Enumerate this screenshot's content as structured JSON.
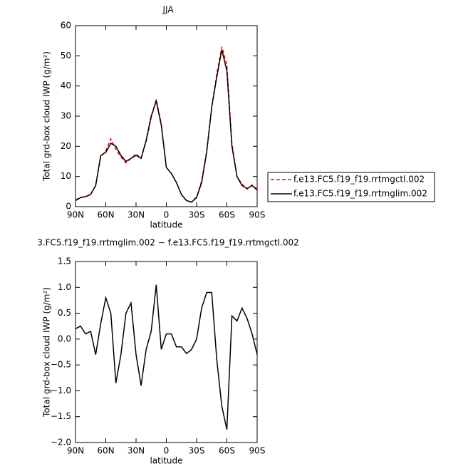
{
  "chart_data": [
    {
      "type": "line",
      "title": "JJA",
      "x_label": "latitude",
      "y_label": "Total grd-box cloud IWP (g/m²)",
      "x": [
        90,
        85,
        80,
        75,
        70,
        65,
        60,
        55,
        50,
        45,
        40,
        35,
        30,
        25,
        20,
        15,
        10,
        5,
        0,
        -5,
        -10,
        -15,
        -20,
        -25,
        -30,
        -35,
        -40,
        -45,
        -50,
        -55,
        -60,
        -65,
        -70,
        -75,
        -80,
        -85,
        -90
      ],
      "xlim": [
        90,
        -90
      ],
      "xticks": [
        {
          "value": 90,
          "label": "90N"
        },
        {
          "value": 60,
          "label": "60N"
        },
        {
          "value": 30,
          "label": "30N"
        },
        0,
        {
          "value": -30,
          "label": "30S"
        },
        {
          "value": -60,
          "label": "60S"
        },
        {
          "value": -90,
          "label": "90S"
        }
      ],
      "ylim": [
        0,
        60
      ],
      "yticks": [
        0,
        10,
        20,
        30,
        40,
        50,
        60
      ],
      "legend": "right",
      "series": [
        {
          "name": "f.e13.FC5.f19_f19.rrtmgctl.002",
          "color": "#ff0000",
          "dash": true,
          "values": [
            2.2,
            3.1,
            3.3,
            4.2,
            7,
            16.5,
            18.5,
            22.5,
            19,
            16.5,
            14.5,
            16,
            17.5,
            16,
            21.5,
            29.5,
            35.5,
            27.5,
            13,
            11,
            8,
            4,
            2,
            1.6,
            3.2,
            8.5,
            18.5,
            33,
            44,
            53,
            47,
            21,
            10,
            7.5,
            5.8,
            7.2,
            5.8
          ]
        },
        {
          "name": "f.e13.FC5.f19_f19.rrtmglim.002",
          "color": "#000000",
          "dash": false,
          "values": [
            2,
            3,
            3.3,
            4,
            7,
            17,
            18,
            21,
            20,
            17,
            15,
            16,
            17,
            16,
            22,
            30,
            35,
            27,
            13,
            11,
            8,
            4,
            2,
            1.5,
            3,
            8,
            18,
            33,
            43,
            52,
            45,
            20,
            10,
            7,
            6,
            7,
            5.5
          ]
        }
      ]
    },
    {
      "type": "line",
      "title": "3.FC5.f19_f19.rrtmglim.002 − f.e13.FC5.f19_f19.rrtmgctl.002",
      "x_label": "latitude",
      "y_label": "Total grd-box cloud IWP (g/m²)",
      "x": [
        90,
        85,
        80,
        75,
        70,
        65,
        60,
        55,
        50,
        45,
        40,
        35,
        30,
        25,
        20,
        15,
        10,
        5,
        0,
        -5,
        -10,
        -15,
        -20,
        -25,
        -30,
        -35,
        -40,
        -45,
        -50,
        -55,
        -60,
        -65,
        -70,
        -75,
        -80,
        -85,
        -90
      ],
      "xlim": [
        90,
        -90
      ],
      "xticks": [
        {
          "value": 90,
          "label": "90N"
        },
        {
          "value": 60,
          "label": "60N"
        },
        {
          "value": 30,
          "label": "30N"
        },
        0,
        {
          "value": -30,
          "label": "30S"
        },
        {
          "value": -60,
          "label": "60S"
        },
        {
          "value": -90,
          "label": "90S"
        }
      ],
      "ylim": [
        -2,
        1.5
      ],
      "yticks": [
        {
          "value": -2,
          "label": "−2.0"
        },
        {
          "value": -1.5,
          "label": "−1.5"
        },
        {
          "value": -1,
          "label": "−1.0"
        },
        {
          "value": -0.5,
          "label": "−0.5"
        },
        {
          "value": 0,
          "label": "0.0"
        },
        0.5,
        {
          "value": 1,
          "label": "1.0"
        },
        1.5
      ],
      "series": [
        {
          "color": "#000000",
          "dash": false,
          "values": [
            0.2,
            0.25,
            0.1,
            0.15,
            -0.3,
            0.3,
            0.8,
            0.5,
            -0.85,
            -0.3,
            0.5,
            0.7,
            -0.3,
            -0.9,
            -0.2,
            0.15,
            1.05,
            -0.2,
            0.1,
            0.1,
            -0.15,
            -0.15,
            -0.28,
            -0.2,
            0,
            0.6,
            0.9,
            0.9,
            -0.4,
            -1.3,
            -1.75,
            0.45,
            0.35,
            0.6,
            0.4,
            0.1,
            -0.3
          ]
        }
      ]
    }
  ]
}
